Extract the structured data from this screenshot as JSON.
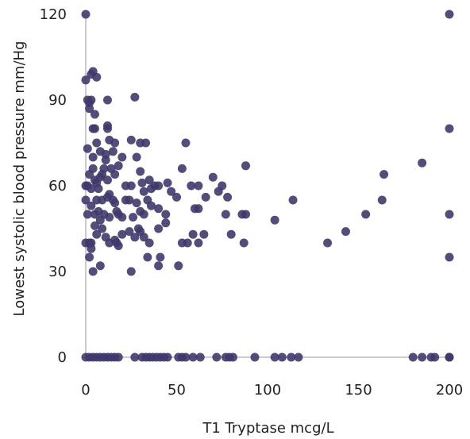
{
  "chart_data": {
    "type": "scatter",
    "xlabel": "T1 Tryptase mcg/L",
    "ylabel": "Lowest systolic blood pressure mm/Hg",
    "xlim": [
      0,
      200
    ],
    "ylim": [
      0,
      120
    ],
    "x_ticks": [
      "0",
      "50",
      "100",
      "150",
      "200"
    ],
    "y_ticks": [
      "0",
      "30",
      "60",
      "90",
      "120"
    ],
    "grid": false,
    "point_color": "#3f3a6b",
    "points": [
      [
        0,
        120
      ],
      [
        200,
        120
      ],
      [
        0,
        97
      ],
      [
        3,
        99
      ],
      [
        4,
        100
      ],
      [
        6,
        98
      ],
      [
        2,
        87
      ],
      [
        2,
        89
      ],
      [
        3,
        90
      ],
      [
        1,
        90
      ],
      [
        12,
        90
      ],
      [
        27,
        91
      ],
      [
        4,
        80
      ],
      [
        5,
        80
      ],
      [
        12,
        80
      ],
      [
        12,
        81
      ],
      [
        5,
        85
      ],
      [
        1,
        73
      ],
      [
        4,
        70
      ],
      [
        6,
        75
      ],
      [
        8,
        72
      ],
      [
        11,
        71
      ],
      [
        13,
        76
      ],
      [
        15,
        72
      ],
      [
        16,
        75
      ],
      [
        25,
        76
      ],
      [
        30,
        75
      ],
      [
        33,
        75
      ],
      [
        55,
        75
      ],
      [
        200,
        80
      ],
      [
        0,
        60
      ],
      [
        1,
        60
      ],
      [
        2,
        64
      ],
      [
        3,
        59
      ],
      [
        4,
        66
      ],
      [
        5,
        62
      ],
      [
        6,
        61
      ],
      [
        7,
        59
      ],
      [
        8,
        63
      ],
      [
        9,
        64
      ],
      [
        10,
        66
      ],
      [
        11,
        69
      ],
      [
        12,
        62
      ],
      [
        13,
        57
      ],
      [
        14,
        66
      ],
      [
        16,
        64
      ],
      [
        18,
        67
      ],
      [
        20,
        70
      ],
      [
        22,
        60
      ],
      [
        25,
        60
      ],
      [
        28,
        70
      ],
      [
        30,
        65
      ],
      [
        31,
        61
      ],
      [
        32,
        58
      ],
      [
        35,
        62
      ],
      [
        36,
        59
      ],
      [
        38,
        60
      ],
      [
        40,
        60
      ],
      [
        45,
        61
      ],
      [
        53,
        66
      ],
      [
        62,
        60
      ],
      [
        62,
        52
      ],
      [
        66,
        56
      ],
      [
        70,
        63
      ],
      [
        75,
        60
      ],
      [
        78,
        56
      ],
      [
        88,
        67
      ],
      [
        164,
        64
      ],
      [
        185,
        68
      ],
      [
        0,
        55
      ],
      [
        1,
        50
      ],
      [
        3,
        53
      ],
      [
        5,
        50
      ],
      [
        6,
        55
      ],
      [
        7,
        51
      ],
      [
        9,
        55
      ],
      [
        10,
        50
      ],
      [
        12,
        56
      ],
      [
        13,
        49
      ],
      [
        15,
        55
      ],
      [
        16,
        54
      ],
      [
        17,
        51
      ],
      [
        18,
        50
      ],
      [
        20,
        49
      ],
      [
        22,
        55
      ],
      [
        24,
        55
      ],
      [
        26,
        49
      ],
      [
        28,
        54
      ],
      [
        30,
        51
      ],
      [
        32,
        50
      ],
      [
        34,
        55
      ],
      [
        36,
        53
      ],
      [
        40,
        52
      ],
      [
        44,
        50
      ],
      [
        47,
        58
      ],
      [
        50,
        56
      ],
      [
        58,
        60
      ],
      [
        60,
        52
      ],
      [
        73,
        58
      ],
      [
        77,
        50
      ],
      [
        86,
        50
      ],
      [
        88,
        50
      ],
      [
        104,
        48
      ],
      [
        114,
        55
      ],
      [
        154,
        50
      ],
      [
        163,
        55
      ],
      [
        200,
        50
      ],
      [
        0,
        40
      ],
      [
        2,
        40
      ],
      [
        3,
        40
      ],
      [
        5,
        46
      ],
      [
        6,
        43
      ],
      [
        8,
        48
      ],
      [
        9,
        45
      ],
      [
        11,
        42
      ],
      [
        13,
        40
      ],
      [
        16,
        41
      ],
      [
        17,
        40
      ],
      [
        18,
        39
      ],
      [
        20,
        43
      ],
      [
        24,
        44
      ],
      [
        27,
        42
      ],
      [
        29,
        45
      ],
      [
        30,
        44
      ],
      [
        32,
        42
      ],
      [
        35,
        40
      ],
      [
        40,
        45
      ],
      [
        44,
        47
      ],
      [
        53,
        40
      ],
      [
        56,
        40
      ],
      [
        59,
        43
      ],
      [
        62,
        40
      ],
      [
        65,
        43
      ],
      [
        80,
        43
      ],
      [
        87,
        40
      ],
      [
        133,
        40
      ],
      [
        143,
        44
      ],
      [
        2,
        35
      ],
      [
        3,
        38
      ],
      [
        4,
        30
      ],
      [
        8,
        32
      ],
      [
        25,
        30
      ],
      [
        34,
        35
      ],
      [
        40,
        32
      ],
      [
        41,
        35
      ],
      [
        51,
        32
      ],
      [
        200,
        35
      ],
      [
        0,
        0
      ],
      [
        2,
        0
      ],
      [
        4,
        0
      ],
      [
        6,
        0
      ],
      [
        8,
        0
      ],
      [
        10,
        0
      ],
      [
        12,
        0
      ],
      [
        14,
        0
      ],
      [
        16,
        0
      ],
      [
        18,
        0
      ],
      [
        27,
        0
      ],
      [
        31,
        0
      ],
      [
        33,
        0
      ],
      [
        35,
        0
      ],
      [
        37,
        0
      ],
      [
        39,
        0
      ],
      [
        41,
        0
      ],
      [
        43,
        0
      ],
      [
        45,
        0
      ],
      [
        51,
        0
      ],
      [
        53,
        0
      ],
      [
        55,
        0
      ],
      [
        59,
        0
      ],
      [
        63,
        0
      ],
      [
        72,
        0
      ],
      [
        77,
        0
      ],
      [
        79,
        0
      ],
      [
        81,
        0
      ],
      [
        93,
        0
      ],
      [
        104,
        0
      ],
      [
        108,
        0
      ],
      [
        113,
        0
      ],
      [
        117,
        0
      ],
      [
        180,
        0
      ],
      [
        185,
        0
      ],
      [
        190,
        0
      ],
      [
        192,
        0
      ],
      [
        200,
        0
      ],
      [
        200,
        0
      ]
    ]
  }
}
